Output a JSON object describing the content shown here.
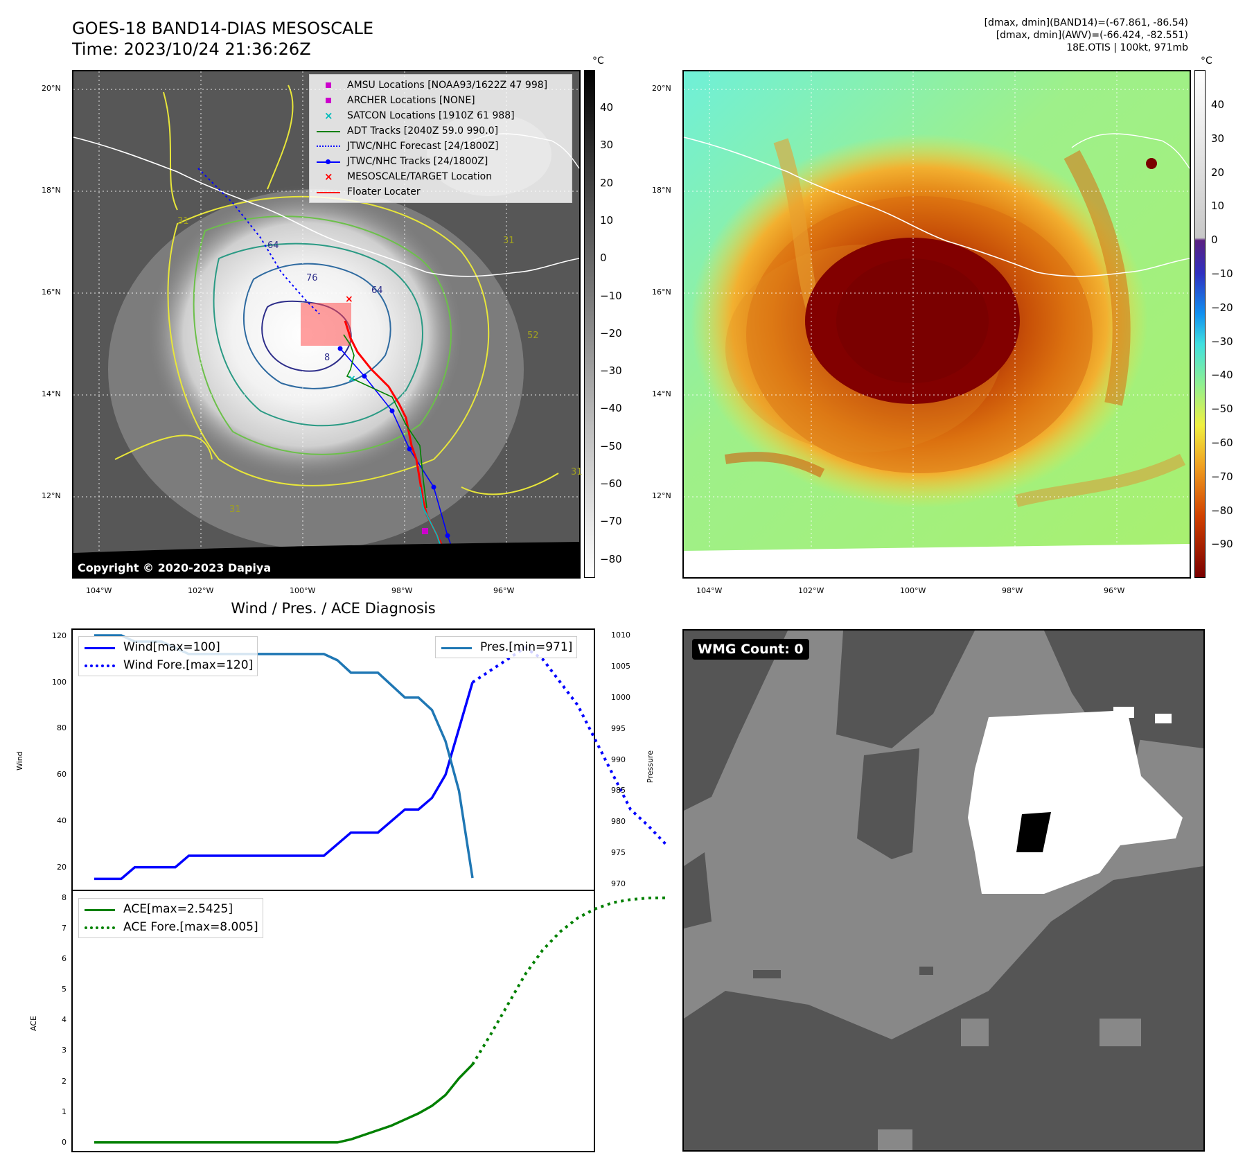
{
  "header": {
    "title_line1": "GOES-18 BAND14-DIAS MESOSCALE",
    "title_line2": "Time: 2023/10/24 21:36:26Z",
    "info_line1": "[dmax, dmin](BAND14)=(-67.861, -86.54)",
    "info_line2": "[dmax, dmin](AWV)=(-66.424, -82.551)",
    "info_line3": "18E.OTIS | 100kt, 971mb"
  },
  "map_ticks": {
    "lat": [
      "20°N",
      "18°N",
      "16°N",
      "14°N",
      "12°N"
    ],
    "lon": [
      "104°W",
      "102°W",
      "100°W",
      "98°W",
      "96°W"
    ]
  },
  "ir_panel": {
    "copyright": "Copyright © 2020-2023 Dapiya",
    "colorbar_unit": "°C",
    "colorbar_ticks": [
      "40",
      "30",
      "20",
      "10",
      "0",
      "−10",
      "−20",
      "−30",
      "−40",
      "−50",
      "−60",
      "−70",
      "−80"
    ],
    "contour_labels": [
      "64",
      "76",
      "64",
      "8",
      "31",
      "31",
      "31",
      "52",
      "31"
    ],
    "legend": [
      {
        "label": "AMSU Locations [NOAA93/1622Z 47 998]",
        "color": "#cc00cc",
        "symbol": "square"
      },
      {
        "label": "ARCHER Locations [NONE]",
        "color": "#cc00cc",
        "symbol": "square"
      },
      {
        "label": "SATCON Locations [1910Z 61 988]",
        "color": "#00bbbb",
        "symbol": "x"
      },
      {
        "label": "ADT Tracks [2040Z 59.0 990.0]",
        "color": "#008000",
        "symbol": "line"
      },
      {
        "label": "JTWC/NHC Forecast [24/1800Z]",
        "color": "#0000ff",
        "symbol": "dotted"
      },
      {
        "label": "JTWC/NHC Tracks [24/1800Z]",
        "color": "#0000ff",
        "symbol": "line-dot"
      },
      {
        "label": "MESOSCALE/TARGET Location",
        "color": "#ff0000",
        "symbol": "x"
      },
      {
        "label": "Floater Locater",
        "color": "#ff0000",
        "symbol": "line"
      }
    ]
  },
  "awv_panel": {
    "colorbar_unit": "°C",
    "colorbar_ticks": [
      "40",
      "30",
      "20",
      "10",
      "0",
      "−10",
      "−20",
      "−30",
      "−40",
      "−50",
      "−60",
      "−70",
      "−80",
      "−90"
    ]
  },
  "diagnosis_panel": {
    "title": "Wind / Pres. / ACE Diagnosis",
    "wind_ylabel": "Wind",
    "pressure_ylabel": "Pressure",
    "ace_ylabel": "ACE",
    "wind_ticks": [
      "120",
      "100",
      "80",
      "60",
      "40",
      "20"
    ],
    "pressure_ticks": [
      "1010",
      "1005",
      "1000",
      "995",
      "990",
      "985",
      "980",
      "975",
      "970"
    ],
    "ace_ticks": [
      "8",
      "7",
      "6",
      "5",
      "4",
      "3",
      "2",
      "1",
      "0"
    ],
    "legend_wind": "Wind[max=100]",
    "legend_wind_fore": "Wind Fore.[max=120]",
    "legend_pres": "Pres.[min=971]",
    "legend_ace": "ACE[max=2.5425]",
    "legend_ace_fore": "ACE Fore.[max=8.005]"
  },
  "wmg_panel": {
    "label": "WMG Count: 0"
  },
  "chart_data": [
    {
      "type": "line",
      "title": "Wind / Pres. / ACE Diagnosis",
      "ylabel": "Wind",
      "ylim": [
        10,
        123
      ],
      "series": [
        {
          "name": "Wind[max=100]",
          "color": "#0000ff",
          "style": "solid",
          "values": [
            15,
            15,
            15,
            20,
            20,
            20,
            20,
            25,
            25,
            25,
            25,
            25,
            25,
            25,
            25,
            25,
            25,
            25,
            30,
            35,
            35,
            35,
            40,
            45,
            45,
            50,
            60,
            80,
            100
          ]
        },
        {
          "name": "Wind Fore.[max=120]",
          "color": "#0000ff",
          "style": "dotted",
          "values": [
            100,
            105,
            110,
            115,
            110,
            100,
            90,
            75,
            60,
            45,
            38,
            30
          ]
        }
      ]
    },
    {
      "type": "line",
      "ylabel": "Pressure",
      "ylim": [
        969,
        1011
      ],
      "series": [
        {
          "name": "Pres.[min=971]",
          "color": "#1f77b4",
          "style": "solid",
          "values": [
            1010,
            1010,
            1010,
            1009,
            1009,
            1009,
            1008,
            1007,
            1007,
            1007,
            1007,
            1007,
            1007,
            1007,
            1007,
            1007,
            1007,
            1007,
            1006,
            1004,
            1004,
            1004,
            1002,
            1000,
            1000,
            998,
            993,
            985,
            971
          ]
        }
      ]
    },
    {
      "type": "line",
      "ylabel": "ACE",
      "ylim": [
        -0.3,
        8.25
      ],
      "series": [
        {
          "name": "ACE[max=2.5425]",
          "color": "#008000",
          "style": "solid",
          "values": [
            0,
            0,
            0,
            0,
            0,
            0,
            0,
            0,
            0,
            0,
            0,
            0,
            0,
            0,
            0,
            0,
            0,
            0,
            0,
            0.1,
            0.25,
            0.4,
            0.55,
            0.75,
            0.95,
            1.2,
            1.55,
            2.1,
            2.55
          ]
        },
        {
          "name": "ACE Fore.[max=8.005]",
          "color": "#008000",
          "style": "dotted",
          "values": [
            2.55,
            3.5,
            4.5,
            5.5,
            6.3,
            6.9,
            7.35,
            7.65,
            7.85,
            7.95,
            8.0,
            8.005
          ]
        }
      ]
    }
  ]
}
